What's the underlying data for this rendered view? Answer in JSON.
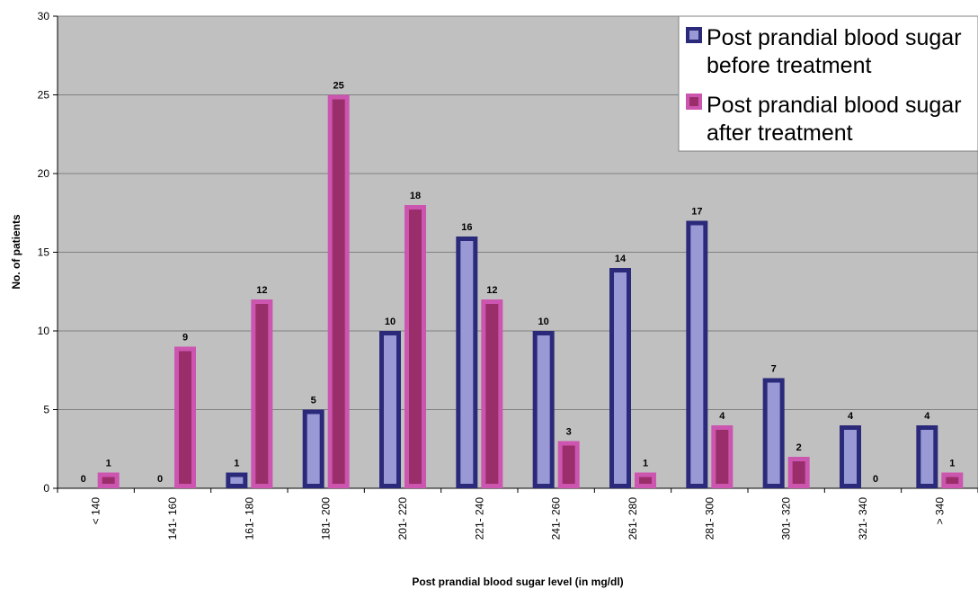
{
  "chart_data": {
    "type": "bar",
    "title": "",
    "xlabel": "Post prandial blood sugar level (in mg/dl)",
    "ylabel": "No. of patients",
    "ylim": [
      0,
      30
    ],
    "yticks": [
      0,
      5,
      10,
      15,
      20,
      25,
      30
    ],
    "grid": true,
    "legend_position": "top-right",
    "categories": [
      "< 140",
      "141- 160",
      "161- 180",
      "181- 200",
      "201- 220",
      "221- 240",
      "241- 260",
      "261- 280",
      "281- 300",
      "301- 320",
      "321- 340",
      "> 340"
    ],
    "series": [
      {
        "name_lines": [
          "Post prandial blood sugar",
          "before treatment"
        ],
        "values": [
          0,
          0,
          1,
          5,
          10,
          16,
          10,
          14,
          17,
          7,
          4,
          4
        ],
        "outline_color": "#2b2a7a",
        "fill_color": "#9999d6"
      },
      {
        "name_lines": [
          "Post prandial blood sugar",
          "after treatment"
        ],
        "values": [
          1,
          9,
          12,
          25,
          18,
          12,
          3,
          1,
          4,
          2,
          0,
          1
        ],
        "outline_color": "#cc55b0",
        "fill_color": "#9a2e6a"
      }
    ],
    "plot_background": "#c0c0c0"
  }
}
